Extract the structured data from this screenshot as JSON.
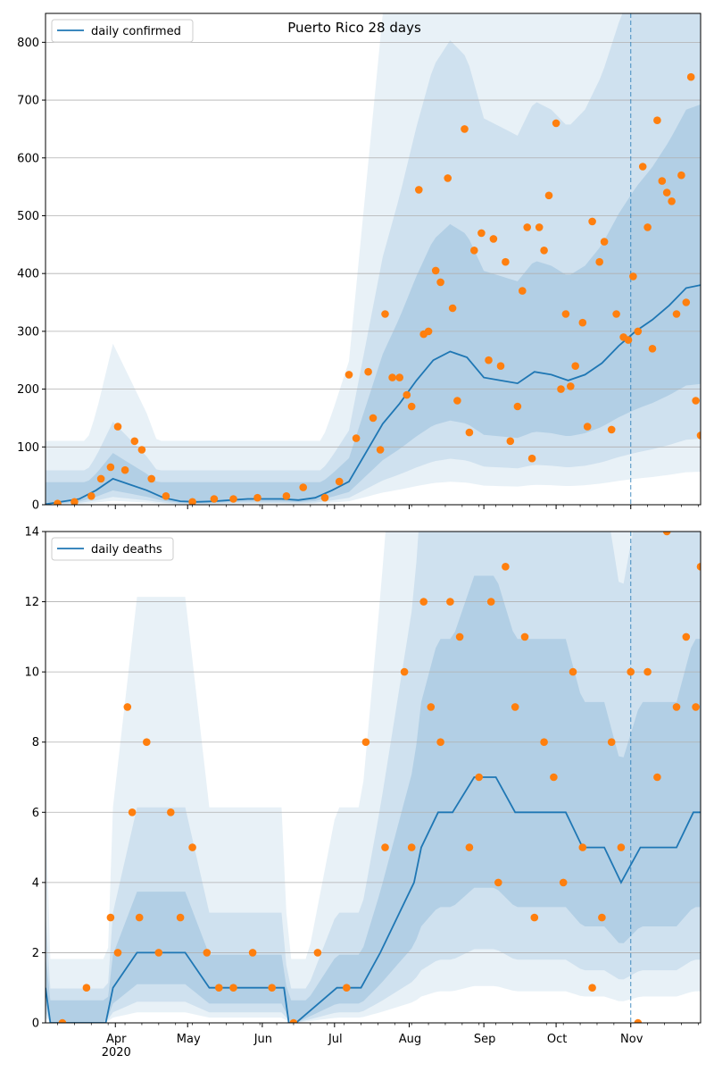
{
  "colors": {
    "line": "#1f77b4",
    "points": "#ff7f0e",
    "band": "#1f77b4",
    "grid": "#b0b0b0",
    "forecast_line": "#1f77b4"
  },
  "chart_data": [
    {
      "type": "line",
      "title": "Puerto Rico 28 days",
      "legend": {
        "label": "daily confirmed",
        "placement": "top-left"
      },
      "grid": "horizontal",
      "ylim": [
        0,
        850
      ],
      "yticks": [
        0,
        100,
        200,
        300,
        400,
        500,
        600,
        700,
        800
      ],
      "x_range": [
        "2020-03-03",
        "2020-11-30"
      ],
      "forecast_start": "2020-11-01",
      "series": [
        {
          "name": "daily confirmed",
          "kind": "line",
          "x": [
            "2020-03-03",
            "2020-03-17",
            "2020-03-24",
            "2020-03-31",
            "2020-04-07",
            "2020-04-14",
            "2020-04-21",
            "2020-04-28",
            "2020-05-05",
            "2020-05-12",
            "2020-05-19",
            "2020-05-26",
            "2020-06-02",
            "2020-06-09",
            "2020-06-16",
            "2020-06-23",
            "2020-06-30",
            "2020-07-07",
            "2020-07-14",
            "2020-07-21",
            "2020-07-28",
            "2020-08-04",
            "2020-08-11",
            "2020-08-18",
            "2020-08-25",
            "2020-09-01",
            "2020-09-08",
            "2020-09-15",
            "2020-09-22",
            "2020-09-29",
            "2020-10-06",
            "2020-10-13",
            "2020-10-20",
            "2020-10-27",
            "2020-11-03",
            "2020-11-10",
            "2020-11-17",
            "2020-11-24",
            "2020-11-30"
          ],
          "y": [
            1,
            10,
            25,
            45,
            35,
            25,
            12,
            6,
            5,
            6,
            8,
            10,
            10,
            10,
            8,
            12,
            25,
            40,
            90,
            140,
            175,
            215,
            250,
            265,
            255,
            220,
            215,
            210,
            230,
            225,
            215,
            225,
            245,
            275,
            300,
            320,
            345,
            375,
            380
          ]
        },
        {
          "name": "daily confirmed observed",
          "kind": "scatter",
          "x": [
            "2020-03-08",
            "2020-03-15",
            "2020-03-22",
            "2020-03-26",
            "2020-03-30",
            "2020-04-02",
            "2020-04-05",
            "2020-04-09",
            "2020-04-12",
            "2020-04-16",
            "2020-04-22",
            "2020-05-03",
            "2020-05-12",
            "2020-05-20",
            "2020-05-30",
            "2020-06-11",
            "2020-06-18",
            "2020-06-27",
            "2020-07-03",
            "2020-07-07",
            "2020-07-10",
            "2020-07-15",
            "2020-07-17",
            "2020-07-20",
            "2020-07-22",
            "2020-07-25",
            "2020-07-28",
            "2020-07-31",
            "2020-08-02",
            "2020-08-05",
            "2020-08-07",
            "2020-08-09",
            "2020-08-12",
            "2020-08-14",
            "2020-08-17",
            "2020-08-19",
            "2020-08-21",
            "2020-08-24",
            "2020-08-26",
            "2020-08-28",
            "2020-08-31",
            "2020-09-03",
            "2020-09-05",
            "2020-09-08",
            "2020-09-10",
            "2020-09-12",
            "2020-09-15",
            "2020-09-17",
            "2020-09-19",
            "2020-09-21",
            "2020-09-24",
            "2020-09-26",
            "2020-09-28",
            "2020-10-01",
            "2020-10-03",
            "2020-10-05",
            "2020-10-07",
            "2020-10-09",
            "2020-10-12",
            "2020-10-14",
            "2020-10-16",
            "2020-10-19",
            "2020-10-21",
            "2020-10-24",
            "2020-10-26",
            "2020-10-29",
            "2020-10-31",
            "2020-11-02",
            "2020-11-04",
            "2020-11-06",
            "2020-11-08",
            "2020-11-10",
            "2020-11-12",
            "2020-11-14",
            "2020-11-16",
            "2020-11-18",
            "2020-11-20",
            "2020-11-22",
            "2020-11-24",
            "2020-11-26",
            "2020-11-28",
            "2020-11-30"
          ],
          "y": [
            2,
            5,
            15,
            45,
            65,
            135,
            60,
            110,
            95,
            45,
            15,
            5,
            10,
            10,
            12,
            15,
            30,
            12,
            40,
            225,
            115,
            230,
            150,
            95,
            330,
            220,
            220,
            190,
            170,
            545,
            295,
            300,
            405,
            385,
            565,
            340,
            180,
            650,
            125,
            440,
            470,
            250,
            460,
            240,
            420,
            110,
            170,
            370,
            480,
            80,
            480,
            440,
            535,
            660,
            200,
            330,
            205,
            240,
            315,
            135,
            490,
            420,
            455,
            130,
            330,
            290,
            285,
            395,
            300,
            585,
            480,
            270,
            665,
            560,
            540,
            525,
            330,
            570,
            350,
            740,
            180,
            120
          ]
        }
      ]
    },
    {
      "type": "line",
      "title": "",
      "legend": {
        "label": "daily deaths",
        "placement": "top-left"
      },
      "grid": "horizontal",
      "ylim": [
        0,
        14
      ],
      "yticks": [
        0,
        2,
        4,
        6,
        8,
        10,
        12,
        14
      ],
      "x_range": [
        "2020-03-03",
        "2020-11-30"
      ],
      "xticks": [
        "Apr\n2020",
        "May",
        "Jun",
        "Jul",
        "Aug",
        "Sep",
        "Oct",
        "Nov"
      ],
      "forecast_start": "2020-11-01",
      "series": [
        {
          "name": "daily deaths",
          "kind": "line",
          "x": [
            "2020-03-03",
            "2020-03-05",
            "2020-03-28",
            "2020-03-31",
            "2020-04-10",
            "2020-04-15",
            "2020-04-30",
            "2020-05-10",
            "2020-05-31",
            "2020-06-10",
            "2020-06-12",
            "2020-06-15",
            "2020-07-02",
            "2020-07-12",
            "2020-07-20",
            "2020-07-27",
            "2020-08-03",
            "2020-08-06",
            "2020-08-13",
            "2020-08-19",
            "2020-08-28",
            "2020-09-06",
            "2020-09-14",
            "2020-09-20",
            "2020-09-29",
            "2020-10-05",
            "2020-10-12",
            "2020-10-21",
            "2020-10-28",
            "2020-11-05",
            "2020-11-12",
            "2020-11-20",
            "2020-11-27",
            "2020-11-30"
          ],
          "y": [
            1,
            0,
            0,
            1,
            2,
            2,
            2,
            1,
            1,
            1,
            0,
            0,
            1,
            1,
            2,
            3,
            4,
            5,
            6,
            6,
            7,
            7,
            6,
            6,
            6,
            6,
            5,
            5,
            4,
            5,
            5,
            5,
            6,
            6
          ]
        },
        {
          "name": "daily deaths observed",
          "kind": "scatter",
          "x": [
            "2020-03-10",
            "2020-03-20",
            "2020-03-30",
            "2020-04-02",
            "2020-04-06",
            "2020-04-08",
            "2020-04-11",
            "2020-04-14",
            "2020-04-19",
            "2020-04-24",
            "2020-04-28",
            "2020-05-03",
            "2020-05-09",
            "2020-05-14",
            "2020-05-20",
            "2020-05-28",
            "2020-06-05",
            "2020-06-14",
            "2020-06-24",
            "2020-07-06",
            "2020-07-14",
            "2020-07-22",
            "2020-07-30",
            "2020-08-02",
            "2020-08-07",
            "2020-08-10",
            "2020-08-14",
            "2020-08-18",
            "2020-08-22",
            "2020-08-26",
            "2020-08-30",
            "2020-09-04",
            "2020-09-07",
            "2020-09-10",
            "2020-09-14",
            "2020-09-18",
            "2020-09-22",
            "2020-09-26",
            "2020-09-30",
            "2020-10-04",
            "2020-10-08",
            "2020-10-12",
            "2020-10-16",
            "2020-10-20",
            "2020-10-24",
            "2020-10-28",
            "2020-11-01",
            "2020-11-04",
            "2020-11-08",
            "2020-11-12",
            "2020-11-16",
            "2020-11-20",
            "2020-11-24",
            "2020-11-28",
            "2020-11-30"
          ],
          "y": [
            0,
            1,
            3,
            2,
            9,
            6,
            3,
            8,
            2,
            6,
            3,
            5,
            2,
            1,
            1,
            2,
            1,
            0,
            2,
            1,
            8,
            5,
            10,
            5,
            12,
            9,
            8,
            12,
            11,
            5,
            7,
            12,
            4,
            13,
            9,
            11,
            3,
            8,
            7,
            4,
            10,
            5,
            1,
            3,
            8,
            5,
            10,
            0,
            10,
            7,
            14,
            9,
            11,
            9,
            13
          ]
        }
      ]
    }
  ]
}
